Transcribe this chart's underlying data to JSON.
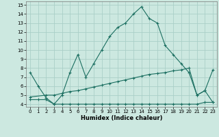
{
  "xlabel": "Humidex (Indice chaleur)",
  "bg_color": "#cce8e0",
  "grid_color": "#aacfc8",
  "line_color": "#1a6e60",
  "xlim": [
    -0.5,
    23.5
  ],
  "ylim": [
    3.7,
    15.4
  ],
  "xticks": [
    0,
    1,
    2,
    3,
    4,
    5,
    6,
    7,
    8,
    9,
    10,
    11,
    12,
    13,
    14,
    15,
    16,
    17,
    18,
    19,
    20,
    21,
    22,
    23
  ],
  "yticks": [
    4,
    5,
    6,
    7,
    8,
    9,
    10,
    11,
    12,
    13,
    14,
    15
  ],
  "line1_x": [
    0,
    1,
    2,
    3,
    4,
    5,
    6,
    7,
    8,
    9,
    10,
    11,
    12,
    13,
    14,
    15,
    16,
    17,
    18,
    19,
    20,
    21,
    22,
    23
  ],
  "line1_y": [
    7.5,
    6.0,
    4.7,
    4.0,
    5.0,
    7.5,
    9.5,
    7.0,
    8.5,
    10.0,
    11.5,
    12.5,
    13.0,
    14.0,
    14.8,
    13.5,
    13.0,
    10.5,
    9.5,
    8.5,
    7.5,
    5.0,
    5.5,
    4.2
  ],
  "line2_x": [
    0,
    1,
    2,
    3,
    4,
    5,
    6,
    7,
    8,
    9,
    10,
    11,
    12,
    13,
    14,
    15,
    16,
    17,
    18,
    19,
    20,
    21,
    22,
    23
  ],
  "line2_y": [
    4.5,
    4.5,
    4.5,
    4.0,
    4.0,
    4.0,
    4.0,
    4.0,
    4.0,
    4.0,
    4.0,
    4.0,
    4.0,
    4.0,
    4.0,
    4.0,
    4.0,
    4.0,
    4.0,
    4.0,
    4.0,
    4.0,
    4.2,
    4.2
  ],
  "line3_x": [
    0,
    2,
    3,
    4,
    5,
    6,
    7,
    8,
    9,
    10,
    11,
    12,
    13,
    14,
    15,
    16,
    17,
    18,
    19,
    20,
    21,
    22,
    23
  ],
  "line3_y": [
    4.8,
    5.0,
    5.0,
    5.2,
    5.4,
    5.5,
    5.7,
    5.9,
    6.1,
    6.3,
    6.5,
    6.7,
    6.9,
    7.1,
    7.3,
    7.4,
    7.5,
    7.7,
    7.8,
    8.0,
    5.0,
    5.5,
    7.8
  ]
}
